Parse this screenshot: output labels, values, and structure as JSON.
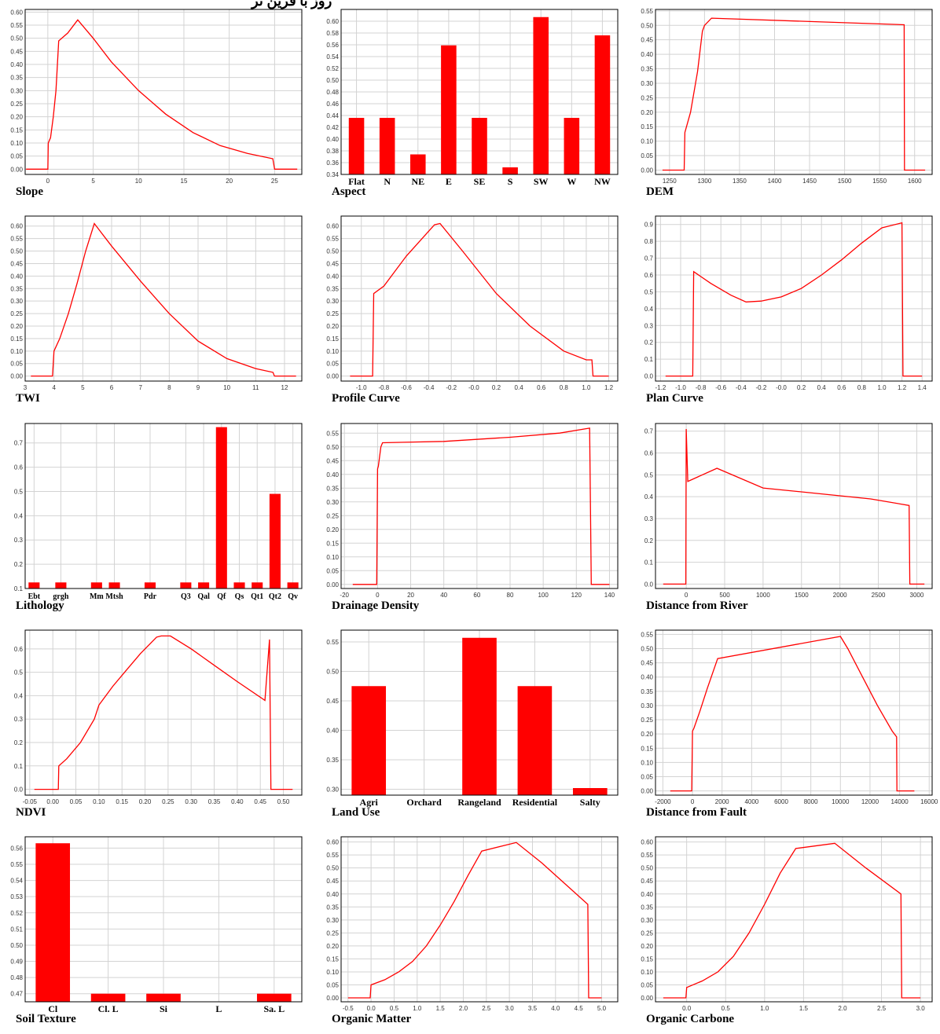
{
  "header_fragment": "ﺭﻭﺯ ﺑﺎ ﻓﺮﻳﻦ ﺛﺮ",
  "colors": {
    "series": "#ff0000",
    "grid": "#d3d3d3",
    "frame": "#000000"
  },
  "chart_data": [
    {
      "id": "slope",
      "type": "line",
      "title": "Slope",
      "xlim": [
        -2.5,
        28
      ],
      "ylim": [
        -0.02,
        0.61
      ],
      "xticks": [
        0,
        5,
        10,
        15,
        20,
        25
      ],
      "yticks": [
        0,
        0.05,
        0.1,
        0.15,
        0.2,
        0.25,
        0.3,
        0.35,
        0.4,
        0.45,
        0.5,
        0.55,
        0.6
      ],
      "x": [
        -2.4,
        0,
        0.05,
        0.3,
        0.6,
        0.9,
        1.2,
        2.2,
        3.3,
        5,
        7,
        10,
        13,
        16,
        19,
        22,
        24.8,
        25,
        27.5
      ],
      "y": [
        0,
        0,
        0.1,
        0.12,
        0.2,
        0.3,
        0.49,
        0.52,
        0.57,
        0.5,
        0.41,
        0.3,
        0.21,
        0.14,
        0.09,
        0.06,
        0.04,
        0,
        0
      ]
    },
    {
      "id": "aspect",
      "type": "bar",
      "title": "Aspect",
      "ylim": [
        0.34,
        0.62
      ],
      "yticks": [
        0.34,
        0.36,
        0.38,
        0.4,
        0.42,
        0.44,
        0.46,
        0.48,
        0.5,
        0.52,
        0.54,
        0.56,
        0.58,
        0.6
      ],
      "categories": [
        "Flat",
        "N",
        "NE",
        "E",
        "SE",
        "S",
        "SW",
        "W",
        "NW"
      ],
      "values": [
        0.436,
        0.436,
        0.374,
        0.559,
        0.436,
        0.352,
        0.607,
        0.436,
        0.576
      ]
    },
    {
      "id": "dem",
      "type": "line",
      "title": "DEM",
      "xlim": [
        1230,
        1625
      ],
      "ylim": [
        -0.015,
        0.555
      ],
      "xticks": [
        1250,
        1300,
        1350,
        1400,
        1450,
        1500,
        1550,
        1600
      ],
      "yticks": [
        0,
        0.05,
        0.1,
        0.15,
        0.2,
        0.25,
        0.3,
        0.35,
        0.4,
        0.45,
        0.5,
        0.55
      ],
      "x": [
        1240,
        1271,
        1272,
        1280,
        1290,
        1297,
        1300,
        1310,
        1585,
        1585.5,
        1615
      ],
      "y": [
        0,
        0,
        0.13,
        0.2,
        0.34,
        0.48,
        0.5,
        0.525,
        0.502,
        0,
        0
      ]
    },
    {
      "id": "twi",
      "type": "line",
      "title": "TWI",
      "xlim": [
        3,
        12.6
      ],
      "ylim": [
        -0.02,
        0.64
      ],
      "xticks": [
        3,
        4,
        5,
        6,
        7,
        8,
        9,
        10,
        11,
        12
      ],
      "yticks": [
        0,
        0.05,
        0.1,
        0.15,
        0.2,
        0.25,
        0.3,
        0.35,
        0.4,
        0.45,
        0.5,
        0.55,
        0.6
      ],
      "x": [
        3.2,
        3.95,
        4,
        4.2,
        4.5,
        4.8,
        5.1,
        5.4,
        6,
        7,
        8,
        9,
        10,
        11,
        11.6,
        11.65,
        12.4
      ],
      "y": [
        0,
        0,
        0.1,
        0.15,
        0.25,
        0.37,
        0.5,
        0.61,
        0.52,
        0.38,
        0.25,
        0.14,
        0.07,
        0.03,
        0.015,
        0,
        0
      ]
    },
    {
      "id": "profile_curve",
      "type": "line",
      "title": "Profile Curve",
      "xlim": [
        -1.18,
        1.28
      ],
      "ylim": [
        -0.02,
        0.64
      ],
      "xticks": [
        -1.0,
        -0.8,
        -0.6,
        -0.4,
        -0.2,
        -0.0,
        0.2,
        0.4,
        0.6,
        0.8,
        1.0,
        1.2
      ],
      "xtick_labels": [
        "-1.0",
        "-0.8",
        "-0.6",
        "-0.4",
        "-0.2",
        "-0.0",
        "0.2",
        "0.4",
        "0.6",
        "0.8",
        "1.0",
        "1.2"
      ],
      "yticks": [
        0,
        0.05,
        0.1,
        0.15,
        0.2,
        0.25,
        0.3,
        0.35,
        0.4,
        0.45,
        0.5,
        0.55,
        0.6
      ],
      "x": [
        -1.1,
        -0.9,
        -0.89,
        -0.8,
        -0.6,
        -0.4,
        -0.35,
        -0.3,
        -0.1,
        0.2,
        0.5,
        0.8,
        1.0,
        1.05,
        1.06,
        1.2
      ],
      "y": [
        0,
        0,
        0.33,
        0.36,
        0.48,
        0.58,
        0.605,
        0.61,
        0.5,
        0.33,
        0.2,
        0.1,
        0.065,
        0.065,
        0,
        0
      ]
    },
    {
      "id": "plan_curve",
      "type": "line",
      "title": "Plan Curve",
      "xlim": [
        -1.25,
        1.5
      ],
      "ylim": [
        -0.03,
        0.95
      ],
      "xticks": [
        -1.2,
        -1.0,
        -0.8,
        -0.6,
        -0.4,
        -0.2,
        -0.0,
        0.2,
        0.4,
        0.6,
        0.8,
        1.0,
        1.2,
        1.4
      ],
      "xtick_labels": [
        "-1.2",
        "-1.0",
        "-0.8",
        "-0.6",
        "-0.4",
        "-0.2",
        "-0.0",
        "0.2",
        "0.4",
        "0.6",
        "0.8",
        "1.0",
        "1.2",
        "1.4"
      ],
      "yticks": [
        0,
        0.1,
        0.2,
        0.3,
        0.4,
        0.5,
        0.6,
        0.7,
        0.8,
        0.9
      ],
      "x": [
        -1.15,
        -0.88,
        -0.87,
        -0.7,
        -0.5,
        -0.35,
        -0.2,
        0,
        0.2,
        0.4,
        0.6,
        0.8,
        1.0,
        1.2,
        1.21,
        1.4
      ],
      "y": [
        0,
        0,
        0.62,
        0.55,
        0.48,
        0.44,
        0.445,
        0.47,
        0.52,
        0.6,
        0.69,
        0.79,
        0.88,
        0.91,
        0,
        0
      ]
    },
    {
      "id": "lithology",
      "type": "bar",
      "title": "Lithology",
      "ylim": [
        0.1,
        0.78
      ],
      "yticks": [
        0.1,
        0.2,
        0.3,
        0.4,
        0.5,
        0.6,
        0.7
      ],
      "categories": [
        "Ebt",
        "grgh",
        "Mm",
        "Mtsh",
        "Pdr",
        "Q3",
        "Qal",
        "Qf",
        "Qs",
        "Qt1",
        "Qt2",
        "Qv"
      ],
      "positions": [
        0.5,
        2,
        4,
        5,
        7,
        9,
        10,
        11,
        12,
        13,
        14,
        15
      ],
      "values": [
        0.125,
        0.125,
        0.125,
        0.125,
        0.125,
        0.125,
        0.125,
        0.765,
        0.125,
        0.125,
        0.49,
        0.125
      ]
    },
    {
      "id": "drainage_density",
      "type": "line",
      "title": "Drainage Density",
      "xlim": [
        -22,
        145
      ],
      "ylim": [
        -0.015,
        0.585
      ],
      "xticks": [
        -20,
        0,
        20,
        40,
        60,
        80,
        100,
        120,
        140
      ],
      "yticks": [
        0,
        0.05,
        0.1,
        0.15,
        0.2,
        0.25,
        0.3,
        0.35,
        0.4,
        0.45,
        0.5,
        0.55
      ],
      "x": [
        -15,
        -0.5,
        0,
        0.5,
        2,
        3,
        40,
        80,
        110,
        128,
        129,
        140
      ],
      "y": [
        0,
        0,
        0.42,
        0.43,
        0.5,
        0.515,
        0.52,
        0.535,
        0.55,
        0.568,
        0,
        0
      ]
    },
    {
      "id": "distance_from_river",
      "type": "line",
      "title": "Distance from River",
      "xlim": [
        -400,
        3200
      ],
      "ylim": [
        -0.02,
        0.735
      ],
      "xticks": [
        0,
        500,
        1000,
        1500,
        2000,
        2500,
        3000
      ],
      "yticks": [
        0,
        0.1,
        0.2,
        0.3,
        0.4,
        0.5,
        0.6,
        0.7
      ],
      "x": [
        -300,
        -5,
        0,
        20,
        400,
        1000,
        1700,
        2400,
        2900,
        2910,
        3100
      ],
      "y": [
        0,
        0,
        0.71,
        0.47,
        0.53,
        0.44,
        0.415,
        0.39,
        0.36,
        0,
        0
      ]
    },
    {
      "id": "ndvi",
      "type": "line",
      "title": "NDVI",
      "xlim": [
        -0.06,
        0.54
      ],
      "ylim": [
        -0.025,
        0.68
      ],
      "xticks": [
        -0.05,
        0,
        0.05,
        0.1,
        0.15,
        0.2,
        0.25,
        0.3,
        0.35,
        0.4,
        0.45,
        0.5
      ],
      "xtick_labels": [
        "-0.05",
        "0.00",
        "0.05",
        "0.10",
        "0.15",
        "0.20",
        "0.25",
        "0.30",
        "0.35",
        "0.40",
        "0.45",
        "0.50"
      ],
      "yticks": [
        0,
        0.1,
        0.2,
        0.3,
        0.4,
        0.5,
        0.6
      ],
      "x": [
        -0.04,
        0.012,
        0.013,
        0.03,
        0.06,
        0.09,
        0.1,
        0.13,
        0.16,
        0.19,
        0.225,
        0.235,
        0.255,
        0.3,
        0.35,
        0.4,
        0.46,
        0.47,
        0.473,
        0.52
      ],
      "y": [
        0,
        0,
        0.1,
        0.13,
        0.2,
        0.3,
        0.36,
        0.44,
        0.51,
        0.58,
        0.65,
        0.655,
        0.655,
        0.6,
        0.53,
        0.46,
        0.38,
        0.64,
        0,
        0
      ]
    },
    {
      "id": "land_use",
      "type": "bar",
      "title": "Land Use",
      "ylim": [
        0.29,
        0.57
      ],
      "yticks": [
        0.3,
        0.35,
        0.4,
        0.45,
        0.5,
        0.55
      ],
      "categories": [
        "Agri",
        "Orchard",
        "Rangeland",
        "Residential",
        "Salty"
      ],
      "values": [
        0.475,
        0.29,
        0.557,
        0.475,
        0.302
      ]
    },
    {
      "id": "distance_from_fault",
      "type": "line",
      "title": "Distance from Fault",
      "xlim": [
        -2500,
        16200
      ],
      "ylim": [
        -0.015,
        0.565
      ],
      "xticks": [
        -2000,
        0,
        2000,
        4000,
        6000,
        8000,
        10000,
        12000,
        14000,
        16000
      ],
      "yticks": [
        0,
        0.05,
        0.1,
        0.15,
        0.2,
        0.25,
        0.3,
        0.35,
        0.4,
        0.45,
        0.5,
        0.55
      ],
      "x": [
        -1500,
        -50,
        0,
        100,
        500,
        1000,
        1700,
        10000,
        10500,
        11500,
        12500,
        13500,
        13800,
        13820,
        15000
      ],
      "y": [
        0,
        0,
        0.21,
        0.22,
        0.28,
        0.36,
        0.465,
        0.543,
        0.5,
        0.4,
        0.3,
        0.21,
        0.19,
        0,
        0
      ]
    },
    {
      "id": "soil_texture",
      "type": "bar",
      "title": "Soil Texture",
      "ylim": [
        0.465,
        0.567
      ],
      "yticks": [
        0.47,
        0.48,
        0.49,
        0.5,
        0.51,
        0.52,
        0.53,
        0.54,
        0.55,
        0.56
      ],
      "categories": [
        "Cl",
        "Cl. L",
        "Si",
        "L",
        "Sa. L"
      ],
      "values": [
        0.563,
        0.47,
        0.47,
        0.465,
        0.47
      ]
    },
    {
      "id": "organic_matter",
      "type": "line",
      "title": "Organic Matter",
      "xlim": [
        -0.65,
        5.35
      ],
      "ylim": [
        -0.015,
        0.62
      ],
      "xticks": [
        -0.5,
        0,
        0.5,
        1,
        1.5,
        2,
        2.5,
        3,
        3.5,
        4,
        4.5,
        5
      ],
      "xtick_labels": [
        "-0.5",
        "0.0",
        "0.5",
        "1.0",
        "1.5",
        "2.0",
        "2.5",
        "3.0",
        "3.5",
        "4.0",
        "4.5",
        "5.0"
      ],
      "yticks": [
        0,
        0.05,
        0.1,
        0.15,
        0.2,
        0.25,
        0.3,
        0.35,
        0.4,
        0.45,
        0.5,
        0.55,
        0.6
      ],
      "x": [
        -0.5,
        -0.02,
        0,
        0.3,
        0.6,
        0.9,
        1.2,
        1.5,
        1.8,
        2.1,
        2.4,
        3.15,
        3.7,
        4.2,
        4.7,
        4.72,
        5.0
      ],
      "y": [
        0,
        0,
        0.05,
        0.07,
        0.1,
        0.14,
        0.2,
        0.28,
        0.37,
        0.47,
        0.565,
        0.598,
        0.52,
        0.44,
        0.36,
        0,
        0
      ]
    },
    {
      "id": "organic_carbone",
      "type": "line",
      "title": "Organic Carbone",
      "xlim": [
        -0.4,
        3.15
      ],
      "ylim": [
        -0.015,
        0.62
      ],
      "xticks": [
        0,
        0.5,
        1,
        1.5,
        2,
        2.5,
        3
      ],
      "xtick_labels": [
        "0.0",
        "0.5",
        "1.0",
        "1.5",
        "2.0",
        "2.5",
        "3.0"
      ],
      "yticks": [
        0,
        0.05,
        0.1,
        0.15,
        0.2,
        0.25,
        0.3,
        0.35,
        0.4,
        0.45,
        0.5,
        0.55,
        0.6
      ],
      "x": [
        -0.3,
        -0.01,
        0,
        0.2,
        0.4,
        0.6,
        0.8,
        1.0,
        1.2,
        1.4,
        1.9,
        2.3,
        2.75,
        2.76,
        3.0
      ],
      "y": [
        0,
        0,
        0.04,
        0.065,
        0.1,
        0.16,
        0.25,
        0.36,
        0.48,
        0.575,
        0.595,
        0.5,
        0.4,
        0,
        0
      ]
    }
  ]
}
